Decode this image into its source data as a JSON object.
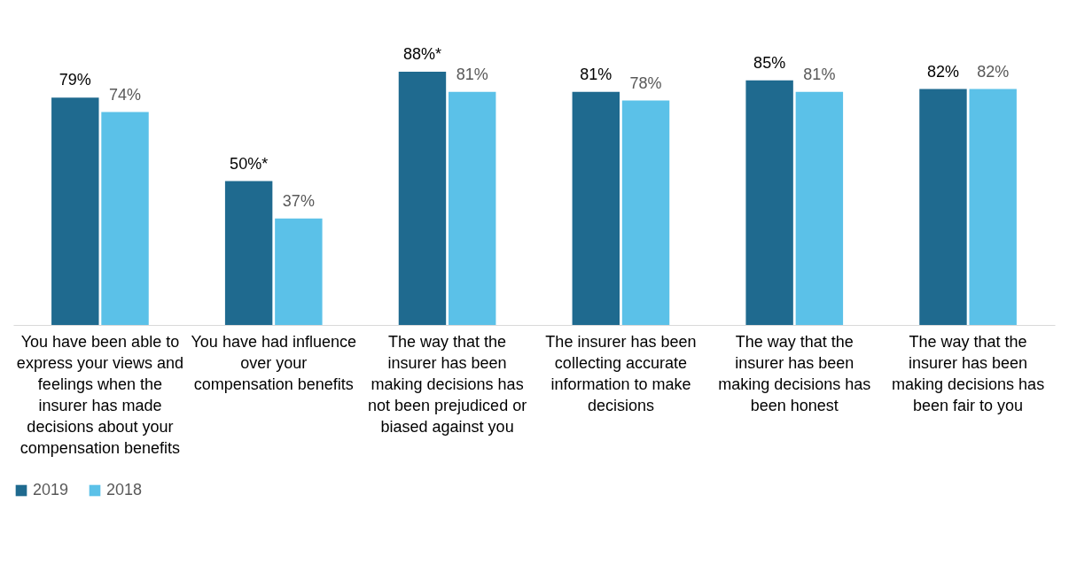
{
  "chart_data": {
    "type": "bar",
    "categories": [
      "You have been able to express your views and feelings when the insurer has made decisions about your compensation benefits",
      "You have had influence over your compensation benefits",
      "The way that the insurer has been making decisions has not been prejudiced or biased against you",
      "The insurer has been collecting accurate information to make decisions",
      "The way that the insurer has been making decisions has been honest",
      "The way that the insurer has been making decisions has been fair to you"
    ],
    "series": [
      {
        "name": "2019",
        "color": "#1f6a8f",
        "values": [
          79,
          50,
          88,
          81,
          85,
          82
        ],
        "value_labels": [
          "79%",
          "50%*",
          "88%*",
          "81%",
          "85%",
          "82%"
        ]
      },
      {
        "name": "2018",
        "color": "#5bc1e8",
        "values": [
          74,
          37,
          81,
          78,
          81,
          82
        ],
        "value_labels": [
          "74%",
          "37%",
          "81%",
          "78%",
          "81%",
          "82%"
        ]
      }
    ],
    "legend": "bottom",
    "grid": false
  }
}
